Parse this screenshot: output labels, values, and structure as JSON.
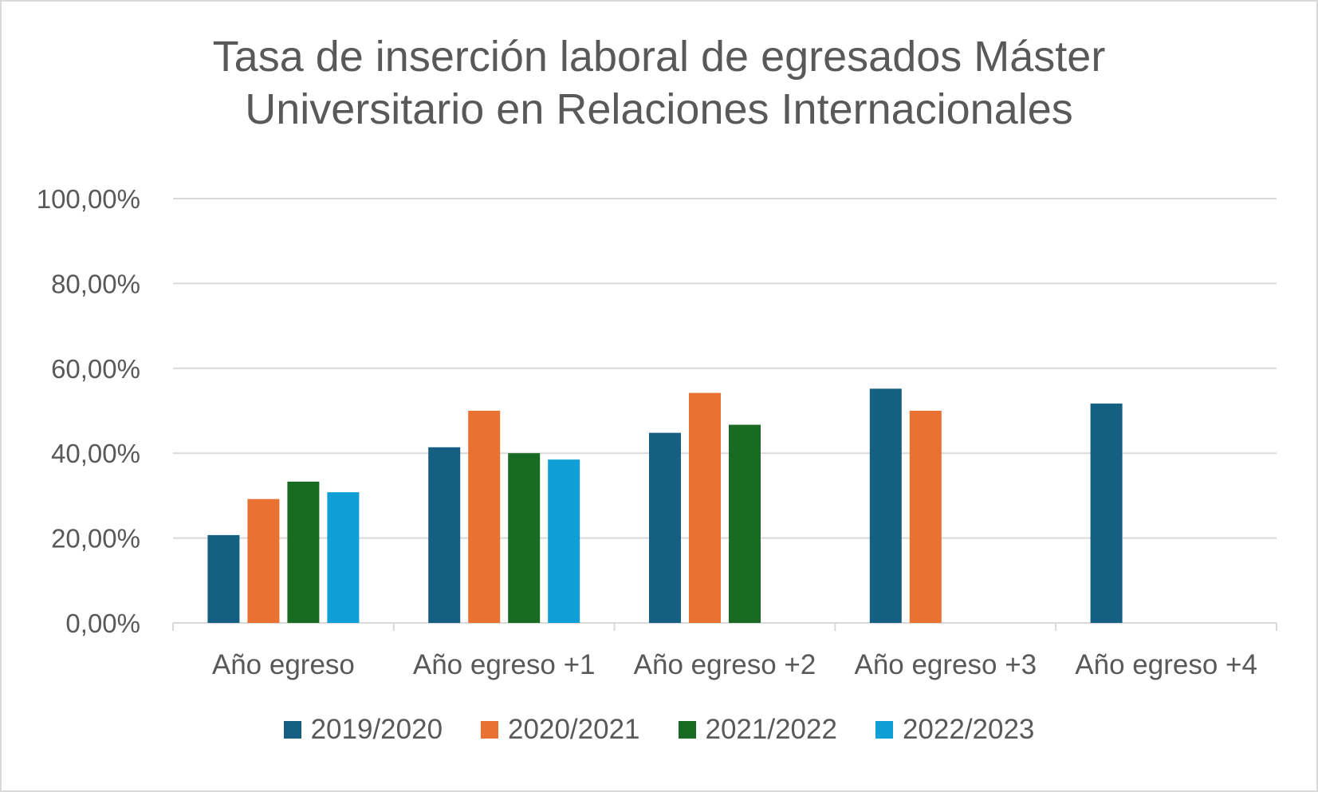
{
  "chart_data": {
    "type": "bar",
    "title": [
      "Tasa de inserción laboral de egresados Máster",
      "Universitario en Relaciones Internacionales"
    ],
    "xlabel": "",
    "ylabel": "",
    "ylim": [
      0,
      100
    ],
    "yticks": [
      "0,00%",
      "20,00%",
      "40,00%",
      "60,00%",
      "80,00%",
      "100,00%"
    ],
    "ytick_values": [
      0,
      20,
      40,
      60,
      80,
      100
    ],
    "grid": true,
    "legend_position": "bottom",
    "categories": [
      "Año egreso",
      "Año egreso +1",
      "Año egreso +2",
      "Año egreso +3",
      "Año egreso +4"
    ],
    "series": [
      {
        "name": "2019/2020",
        "color": "#156082",
        "values": [
          20.7,
          41.4,
          44.8,
          55.2,
          51.7
        ]
      },
      {
        "name": "2020/2021",
        "color": "#e97132",
        "values": [
          29.2,
          50.0,
          54.2,
          50.0,
          null
        ]
      },
      {
        "name": "2021/2022",
        "color": "#196b24",
        "values": [
          33.3,
          40.0,
          46.7,
          null,
          null
        ]
      },
      {
        "name": "2022/2023",
        "color": "#0f9ed5",
        "values": [
          30.8,
          38.5,
          null,
          null,
          null
        ]
      }
    ]
  }
}
